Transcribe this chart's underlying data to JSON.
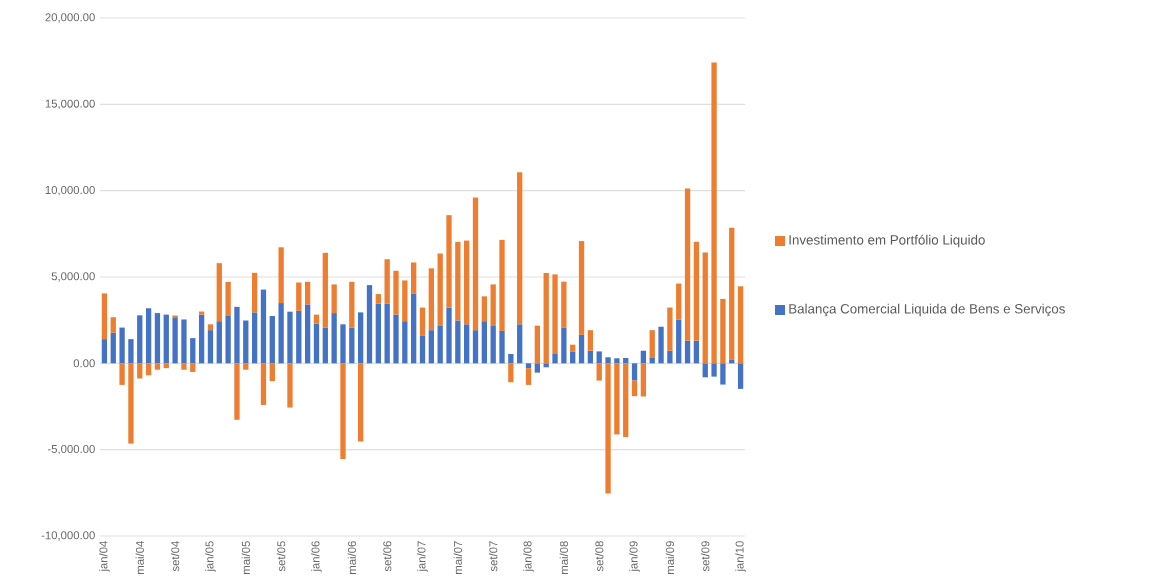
{
  "chart_data": {
    "type": "bar",
    "stacked": true,
    "grid": "y",
    "legend": "right",
    "categories": [
      "jan/04",
      null,
      null,
      null,
      "mai/04",
      null,
      null,
      null,
      "set/04",
      null,
      null,
      null,
      "jan/05",
      null,
      null,
      null,
      "mai/05",
      null,
      null,
      null,
      "set/05",
      null,
      null,
      null,
      "jan/06",
      null,
      null,
      null,
      "mai/06",
      null,
      null,
      null,
      "set/06",
      null,
      null,
      null,
      "jan/07",
      null,
      null,
      null,
      "mai/07",
      null,
      null,
      null,
      "set/07",
      null,
      null,
      null,
      "jan/08",
      null,
      null,
      null,
      "mai/08",
      null,
      null,
      null,
      "set/08",
      null,
      null,
      null,
      "jan/09",
      null,
      null,
      null,
      "mai/09",
      null,
      null,
      null,
      "set/09",
      null,
      null,
      null,
      "jan/10"
    ],
    "ylim": [
      -10000,
      20000
    ],
    "yticks": [
      {
        "value": -10000,
        "label": "-10,000.00"
      },
      {
        "value": -5000,
        "label": "-5,000.00"
      },
      {
        "value": 0,
        "label": "0.00"
      },
      {
        "value": 5000,
        "label": "5,000.00"
      },
      {
        "value": 10000,
        "label": "10,000.00"
      },
      {
        "value": 15000,
        "label": "15,000.00"
      },
      {
        "value": 20000,
        "label": "20,000.00"
      }
    ],
    "series": [
      {
        "name": "Balança Comercial Liquida de Bens e Serviços",
        "color": "#4472c4",
        "values": [
          1400,
          1770,
          2070,
          1400,
          2780,
          3190,
          2910,
          2820,
          2670,
          2540,
          1460,
          2820,
          1920,
          2440,
          2780,
          3270,
          2480,
          2950,
          4270,
          2740,
          3490,
          2990,
          3040,
          3410,
          2300,
          2070,
          2910,
          2260,
          2070,
          2950,
          4530,
          3450,
          3450,
          2820,
          2440,
          4050,
          1620,
          1920,
          2200,
          3230,
          2480,
          2260,
          1920,
          2440,
          2200,
          1880,
          540,
          2260,
          -280,
          -540,
          -230,
          540,
          2080,
          690,
          1650,
          730,
          690,
          350,
          290,
          310,
          -1000,
          730,
          310,
          2120,
          730,
          2540,
          1310,
          1310,
          -810,
          -770,
          -1230,
          230,
          -1480
        ]
      },
      {
        "name": "Investimento em Portfólio Liquido",
        "color": "#ed7d31",
        "values": [
          2650,
          900,
          -1250,
          -4650,
          -880,
          -690,
          -370,
          -280,
          100,
          -370,
          -500,
          180,
          340,
          3360,
          1940,
          -3270,
          -370,
          2290,
          -2410,
          -1030,
          3230,
          -2560,
          1640,
          1310,
          520,
          4330,
          1660,
          -5540,
          2650,
          -4530,
          0,
          560,
          2580,
          2540,
          2360,
          1790,
          1610,
          3580,
          4160,
          5350,
          4550,
          4850,
          7690,
          1440,
          2370,
          5270,
          -1100,
          8810,
          -970,
          2180,
          5230,
          4610,
          2650,
          390,
          5430,
          1190,
          -1000,
          -7540,
          -4120,
          -4270,
          -900,
          -1920,
          1610,
          0,
          2500,
          2080,
          8810,
          5730,
          6420,
          17420,
          3730,
          7620,
          4460
        ]
      }
    ]
  }
}
